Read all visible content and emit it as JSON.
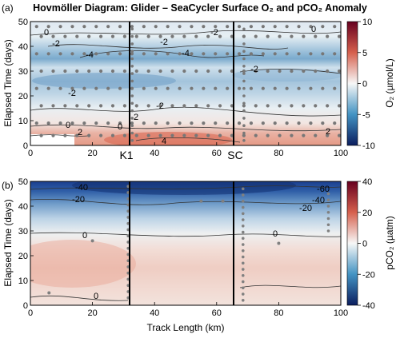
{
  "title": "Hovmöller Diagram: Glider – SeaCycler Surface O₂ and pCO₂ Anomaly",
  "panels": [
    {
      "label": "(a)",
      "colorbar": {
        "label": "O₂ (µmol/L)",
        "ticks": [
          "10",
          "5",
          "0",
          "-5",
          "-10"
        ]
      },
      "markers": [
        "K1",
        "SC"
      ],
      "contour_labels": [
        "0",
        "-2",
        "-4",
        "-4",
        "-2",
        "0",
        "-2",
        "-2",
        "-2",
        "-2",
        "2",
        "0",
        "0",
        "2",
        "2",
        "4"
      ]
    },
    {
      "label": "(b)",
      "colorbar": {
        "label": "pCO₂ (µatm)",
        "ticks": [
          "40",
          "20",
          "0",
          "-20",
          "-40"
        ]
      },
      "contour_labels": [
        "-40",
        "-60",
        "-40",
        "-20",
        "-20",
        "0",
        "0",
        "0"
      ]
    }
  ],
  "x_axis": {
    "label": "Track Length (km)",
    "ticks": [
      "0",
      "20",
      "40",
      "60",
      "80",
      "100"
    ]
  },
  "y_axis": {
    "label": "Elapsed Time (days)",
    "ticks": [
      "0",
      "10",
      "20",
      "30",
      "40",
      "50"
    ]
  },
  "colors": {
    "positive": "#c44a3a",
    "negative": "#1c3f8c",
    "neutral": "#f2f2f2",
    "glider_track": "#777777",
    "contour": "#333333"
  },
  "chart_data": [
    {
      "type": "heatmap",
      "title": "",
      "xlabel": "",
      "ylabel": "Elapsed Time (days)",
      "colorbar_label": "O₂ (µmol/L)",
      "xlim": [
        0,
        100
      ],
      "ylim": [
        0,
        50
      ],
      "clim": [
        -10,
        10
      ],
      "vertical_lines": [
        {
          "x": 32,
          "label": "K1"
        },
        {
          "x": 68,
          "label": "SC"
        }
      ],
      "anomaly_bands": [
        {
          "y_range": [
            43,
            50
          ],
          "value": -1.5
        },
        {
          "y_range": [
            35,
            43
          ],
          "value": -5
        },
        {
          "y_range": [
            31,
            35
          ],
          "value": -2
        },
        {
          "y_range": [
            21,
            31
          ],
          "value": -3
        },
        {
          "y_range": [
            8,
            21
          ],
          "value": -1
        },
        {
          "y_range": [
            0,
            8
          ],
          "value": 3
        }
      ],
      "contour_levels": [
        4,
        2,
        0,
        -2,
        -4
      ],
      "glider_sample_days": [
        48,
        44,
        37,
        30,
        23,
        16,
        9,
        4
      ]
    },
    {
      "type": "heatmap",
      "title": "",
      "xlabel": "Track Length (km)",
      "ylabel": "Elapsed Time (days)",
      "colorbar_label": "pCO₂ (µatm)",
      "xlim": [
        0,
        100
      ],
      "ylim": [
        0,
        50
      ],
      "clim": [
        -40,
        40
      ],
      "vertical_lines": [
        {
          "x": 32,
          "label": ""
        },
        {
          "x": 68,
          "label": ""
        }
      ],
      "anomaly_bands": [
        {
          "y_range": [
            45,
            50
          ],
          "value": -40
        },
        {
          "y_range": [
            38,
            45
          ],
          "value": -25
        },
        {
          "y_range": [
            29,
            38
          ],
          "value": -10
        },
        {
          "y_range": [
            20,
            29
          ],
          "value": 5
        },
        {
          "y_range": [
            0,
            20
          ],
          "value": 10
        }
      ],
      "contour_levels": [
        0,
        -20,
        -40,
        -60
      ]
    }
  ]
}
